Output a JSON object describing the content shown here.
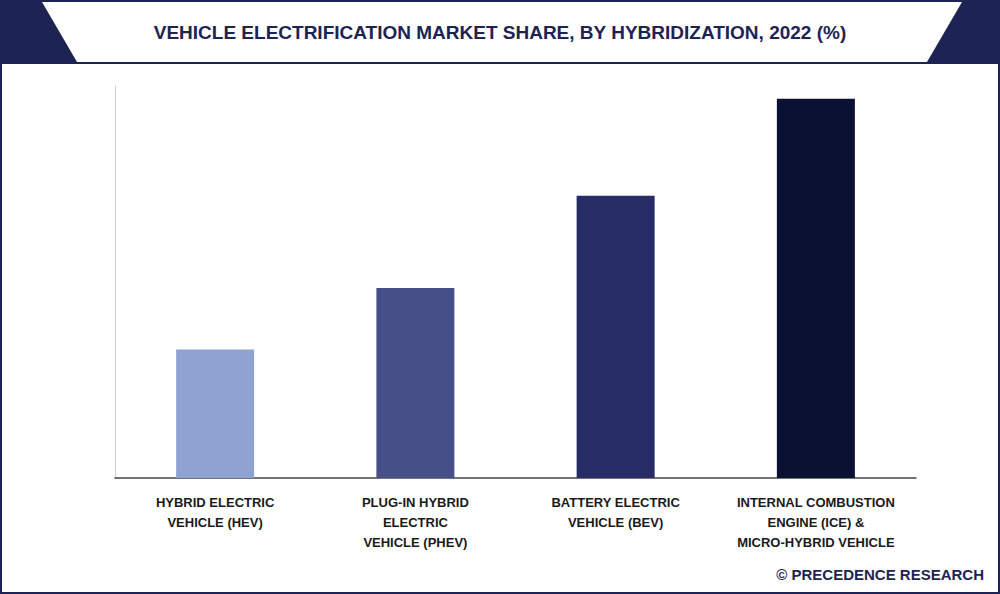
{
  "chart_data": {
    "type": "bar",
    "title": "VEHICLE ELECTRIFICATION MARKET SHARE, BY HYBRIDIZATION, 2022 (%)",
    "categories": [
      "HYBRID ELECTRIC\nVEHICLE (HEV)",
      "PLUG-IN HYBRID\nELECTRIC\nVEHICLE (PHEV)",
      "BATTERY ELECTRIC\nVEHICLE (BEV)",
      "INTERNAL COMBUSTION\nENGINE (ICE) &\nMICRO-HYBRID VEHICLE"
    ],
    "values": [
      13.1,
      19.4,
      28.8,
      38.7
    ],
    "colors": [
      "#8fa3d3",
      "#474f88",
      "#262c66",
      "#0b1132"
    ],
    "ylim": [
      0,
      40
    ],
    "tick_labels": "x",
    "grid": false,
    "annotations": [
      "© PRECEDENCE RESEARCH"
    ]
  }
}
